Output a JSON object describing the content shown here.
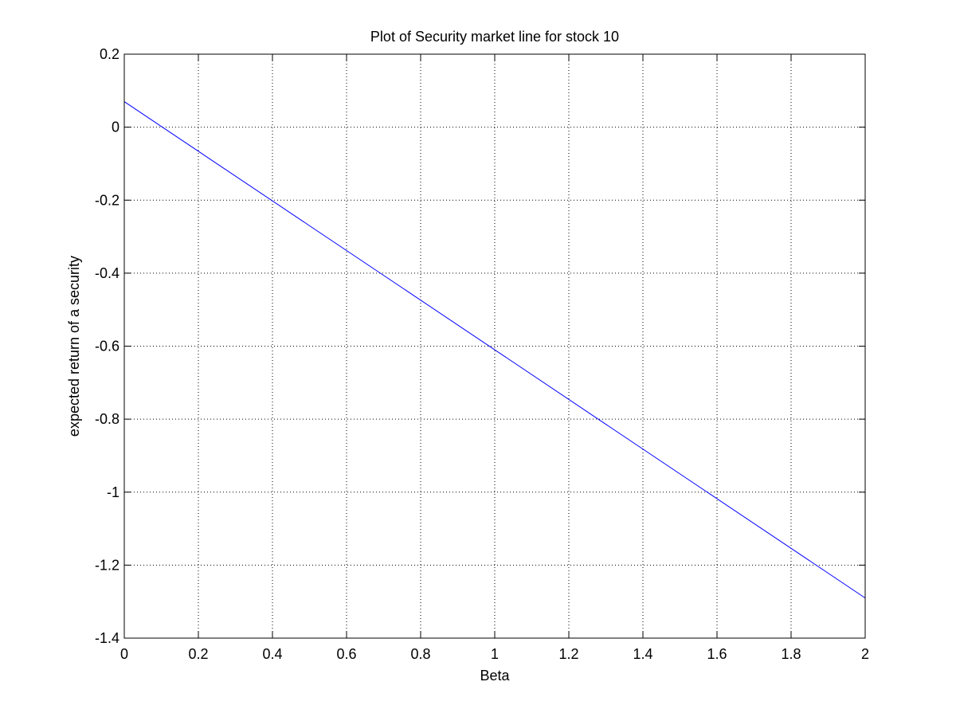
{
  "chart_data": {
    "type": "line",
    "title": "Plot of Security market line for stock 10",
    "xlabel": "Beta",
    "ylabel": "expected return of a security",
    "xlim": [
      0,
      2
    ],
    "ylim": [
      -1.4,
      0.2
    ],
    "xticks": [
      0,
      0.2,
      0.4,
      0.6,
      0.8,
      1,
      1.2,
      1.4,
      1.6,
      1.8,
      2
    ],
    "xtick_labels": [
      "0",
      "0.2",
      "0.4",
      "0.6",
      "0.8",
      "1",
      "1.2",
      "1.4",
      "1.6",
      "1.8",
      "2"
    ],
    "yticks": [
      -1.4,
      -1.2,
      -1,
      -0.8,
      -0.6,
      -0.4,
      -0.2,
      0,
      0.2
    ],
    "ytick_labels": [
      "-1.4",
      "-1.2",
      "-1",
      "-0.8",
      "-0.6",
      "-0.4",
      "-0.2",
      "0",
      "0.2"
    ],
    "grid": true,
    "series": [
      {
        "color": "#0000ff",
        "x": [
          0,
          2
        ],
        "y": [
          0.07,
          -1.29
        ]
      }
    ]
  }
}
